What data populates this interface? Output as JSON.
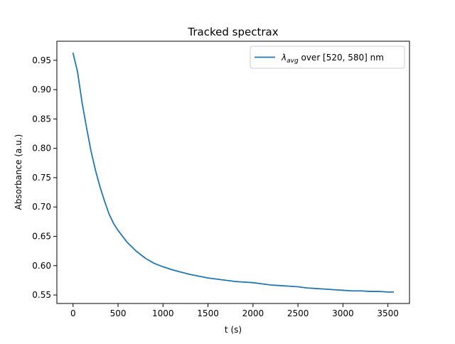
{
  "chart_data": {
    "type": "line",
    "title": "Tracked spectrax",
    "xlabel": "t (s)",
    "ylabel": "Absorbance (a.u.)",
    "xlim": [
      -180,
      3740
    ],
    "ylim": [
      0.5355,
      0.9825
    ],
    "xticks": [
      0,
      500,
      1000,
      1500,
      2000,
      2500,
      3000,
      3500
    ],
    "xtick_labels": [
      "0",
      "500",
      "1000",
      "1500",
      "2000",
      "2500",
      "3000",
      "3500"
    ],
    "yticks": [
      0.55,
      0.6,
      0.65,
      0.7,
      0.75,
      0.8,
      0.85,
      0.9,
      0.95
    ],
    "ytick_labels": [
      "0.55",
      "0.60",
      "0.65",
      "0.70",
      "0.75",
      "0.80",
      "0.85",
      "0.90",
      "0.95"
    ],
    "grid": false,
    "legend_position": "top-right",
    "colors": {
      "series": "#1f77b4"
    },
    "series": [
      {
        "name_prefix": "λ",
        "name_subscript": "avg",
        "name_suffix": " over [520, 580] nm",
        "color": "#1f77b4",
        "x": [
          0,
          50,
          100,
          150,
          200,
          250,
          300,
          350,
          400,
          450,
          500,
          600,
          700,
          800,
          900,
          1000,
          1100,
          1200,
          1300,
          1400,
          1500,
          1600,
          1700,
          1800,
          1900,
          2000,
          2100,
          2200,
          2300,
          2400,
          2500,
          2600,
          2700,
          2800,
          2900,
          3000,
          3100,
          3200,
          3300,
          3400,
          3500,
          3560
        ],
        "y": [
          0.962,
          0.93,
          0.878,
          0.835,
          0.795,
          0.762,
          0.734,
          0.71,
          0.688,
          0.672,
          0.66,
          0.64,
          0.625,
          0.613,
          0.604,
          0.598,
          0.593,
          0.589,
          0.585,
          0.582,
          0.579,
          0.577,
          0.575,
          0.573,
          0.572,
          0.571,
          0.569,
          0.567,
          0.566,
          0.565,
          0.564,
          0.562,
          0.561,
          0.56,
          0.559,
          0.558,
          0.557,
          0.557,
          0.556,
          0.556,
          0.555,
          0.555
        ]
      }
    ]
  }
}
